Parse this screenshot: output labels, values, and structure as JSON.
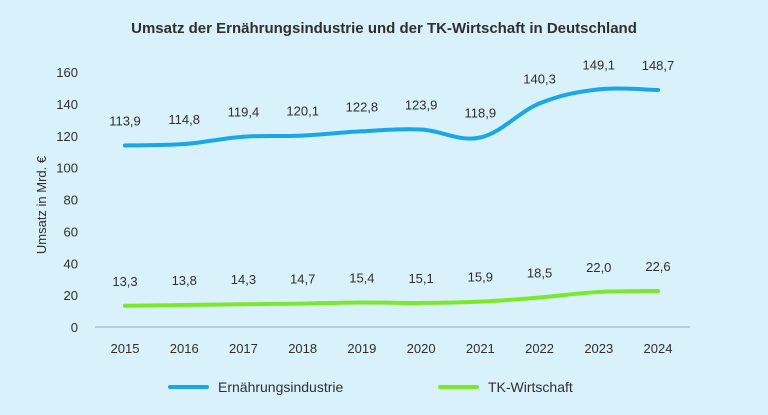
{
  "chart_data": {
    "type": "line",
    "title": "Umsatz der Ernährungsindustrie und der TK-Wirtschaft in Deutschland",
    "xlabel": "",
    "ylabel": "Umsatz in Mrd. €",
    "ylim": [
      0,
      160
    ],
    "yticks": [
      "0",
      "20",
      "40",
      "60",
      "80",
      "100",
      "120",
      "140",
      "160"
    ],
    "categories": [
      "2015",
      "2016",
      "2017",
      "2018",
      "2019",
      "2020",
      "2021",
      "2022",
      "2023",
      "2024"
    ],
    "grid": false,
    "legend_position": "bottom",
    "series": [
      {
        "name": "Ernährungsindustrie",
        "color": "#1aa7e8",
        "values": [
          113.9,
          114.8,
          119.4,
          120.1,
          122.8,
          123.9,
          118.9,
          140.3,
          149.1,
          148.7
        ],
        "labels": [
          "113,9",
          "114,8",
          "119,4",
          "120,1",
          "122,8",
          "123,9",
          "118,9",
          "140,3",
          "149,1",
          "148,7"
        ]
      },
      {
        "name": "TK-Wirtschaft",
        "color": "#7ce82a",
        "values": [
          13.3,
          13.8,
          14.3,
          14.7,
          15.4,
          15.1,
          15.9,
          18.5,
          22.0,
          22.6
        ],
        "labels": [
          "13,3",
          "13,8",
          "14,3",
          "14,7",
          "15,4",
          "15,1",
          "15,9",
          "18,5",
          "22,0",
          "22,6"
        ]
      }
    ]
  }
}
